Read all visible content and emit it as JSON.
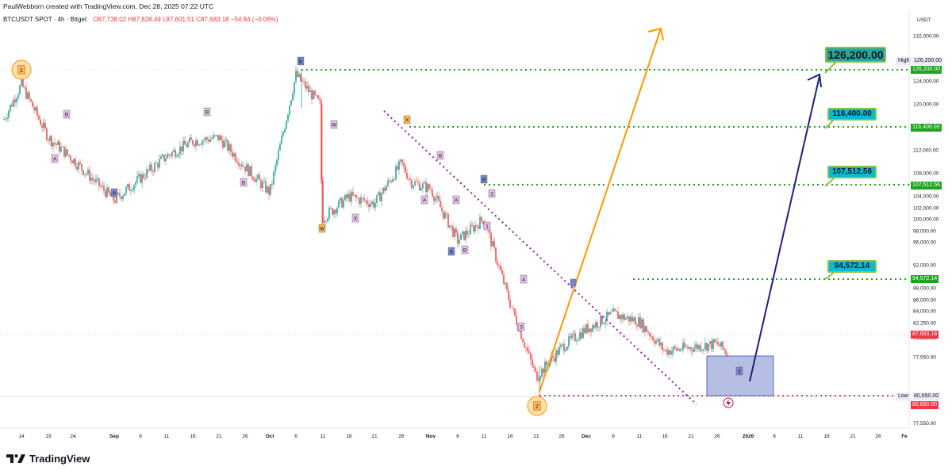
{
  "header": {
    "credit": "PaulWebborn created with TradingView.com, Dec 28, 2025 07:22 UTC"
  },
  "legend": {
    "symbol": "BTCUSDT SPOT · 4h · Bitget",
    "open": "O87,738.02",
    "high": "H87,828.49",
    "low": "L87,601.51",
    "close": "C87,683.18",
    "change": "−54.84 (−0.06%)"
  },
  "price_axis": {
    "currency": "USDT",
    "ticks": [
      "132,000.00",
      "128,000.00",
      "124,000.00",
      "120,000.00",
      "116,000.00",
      "112,000.00",
      "108,000.00",
      "104,000.00",
      "102,000.00",
      "100,000.00",
      "98,000.00",
      "96,000.00",
      "92,000.00",
      "90,000.00",
      "88,000.00",
      "86,000.00",
      "84,000.00",
      "82,250.00",
      "79,550.00",
      "77,550.00"
    ]
  },
  "time_axis": {
    "ticks": [
      "14",
      "19",
      "24",
      "Sep",
      "6",
      "11",
      "16",
      "21",
      "26",
      "Oct",
      "6",
      "11",
      "16",
      "21",
      "26",
      "Nov",
      "6",
      "11",
      "16",
      "21",
      "26",
      "Dec",
      "6",
      "11",
      "16",
      "21",
      "26",
      "2026",
      "6",
      "11",
      "16",
      "21",
      "26",
      "Fe"
    ]
  },
  "price_tags": {
    "high_label": "High",
    "high_value": "126,200.00",
    "target_126200": "126,200.00",
    "target_116400": "116,400.00",
    "target_107512": "107,512.56",
    "target_94572": "94,572.14",
    "current": "87,683.18",
    "low_label": "Low",
    "low_value": "80,650.00",
    "target_80650": "80,650.00"
  },
  "callouts": {
    "c1": "126,200.00",
    "c2": "116,400.00",
    "c3": "107,512.56",
    "c4": "94,572.14"
  },
  "wave_labels": {
    "one": "1",
    "two": "2",
    "b1": "B",
    "a1": "A",
    "b2": "B",
    "a2": "A",
    "b_top": "B",
    "w": "W",
    "w_low": "W",
    "x1": "X",
    "x2": "X",
    "b3": "B",
    "a3": "A",
    "a4": "A",
    "a5": "A",
    "b4": "B",
    "b5": "B",
    "n2": "2",
    "n1": "1",
    "n4": "4",
    "n3": "3",
    "box2": "2"
  },
  "footer": {
    "brand": "TradingView"
  },
  "colors": {
    "up": "#26a69a",
    "down": "#ef5350",
    "green_dotted": "#1ea51e",
    "red_dotted": "#f23645",
    "purple_dotted": "#9c27b0",
    "orange_arrow": "#ff9800",
    "navy_arrow": "#1a237e",
    "box_fill": "#9fa8da"
  },
  "chart_data": {
    "type": "line",
    "title": "",
    "series": [
      {
        "name": "",
        "x": [
          "Aug 11",
          "Aug 14",
          "Aug 19",
          "Aug 24",
          "Aug 28",
          "Sep 1",
          "Sep 6",
          "Sep 11",
          "Sep 16",
          "Sep 21",
          "Sep 26",
          "Oct 1",
          "Oct 6",
          "Oct 10",
          "Oct 11",
          "Oct 16",
          "Oct 21",
          "Oct 26",
          "Oct 29",
          "Nov 1",
          "Nov 6",
          "Nov 11",
          "Nov 16",
          "Nov 21",
          "Nov 26",
          "Dec 1",
          "Dec 6",
          "Dec 11",
          "Dec 16",
          "Dec 21",
          "Dec 26",
          "Dec 28"
        ],
        "y": [
          119500,
          124200,
          117000,
          114000,
          111000,
          108500,
          111500,
          114500,
          116500,
          117000,
          113000,
          109500,
          125500,
          121500,
          106000,
          109000,
          108000,
          113500,
          111000,
          110000,
          103000,
          106000,
          94500,
          84500,
          88500,
          91000,
          93000,
          92000,
          88000,
          88500,
          89000,
          87683
        ]
      }
    ],
    "levels": [
      126200,
      116400,
      107512.56,
      94572.14,
      80650
    ],
    "current_price": 87683.18,
    "ylim": [
      77500,
      134000
    ]
  }
}
